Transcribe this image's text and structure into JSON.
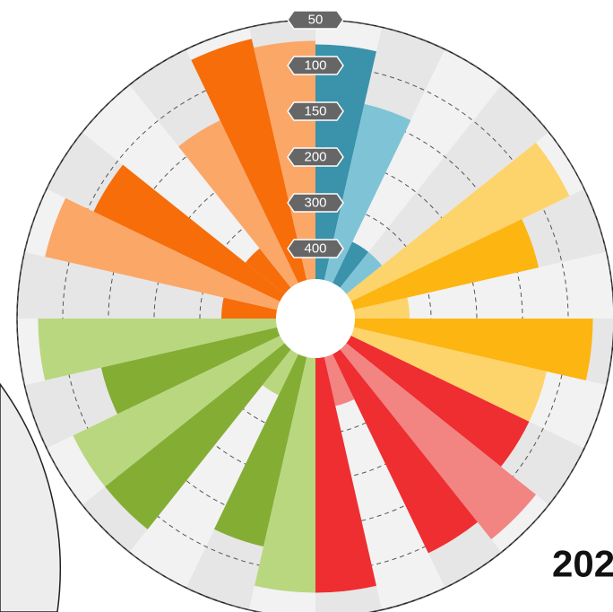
{
  "chart_data": {
    "type": "radial_bar",
    "values": [
      77,
      136,
      367,
      367,
      68,
      126,
      347,
      73,
      117,
      117,
      68,
      92,
      357,
      77,
      77,
      121,
      367,
      82,
      82,
      136,
      73,
      347,
      73,
      107,
      357,
      136,
      63,
      73
    ],
    "colors": [
      "#3a92ab",
      "#7fc4d6",
      "#3a92ab",
      "#7fc4d6",
      "#fdd36b",
      "#fdb512",
      "#fdd36b",
      "#fdb512",
      "#fdd36b",
      "#ee2e31",
      "#f28482",
      "#ee2e31",
      "#f28482",
      "#ee2e31",
      "#b9d77f",
      "#84ad34",
      "#b9d77f",
      "#84ad34",
      "#b9d77f",
      "#84ad34",
      "#b9d77f",
      "#f66d0a",
      "#fba768",
      "#f66d0a",
      "#f66d0a",
      "#fba768",
      "#f66d0a",
      "#fba768"
    ],
    "rlim": [
      50,
      400
    ],
    "rticks": [
      50,
      100,
      150,
      200,
      300,
      400
    ],
    "annotations": [
      "202"
    ]
  }
}
